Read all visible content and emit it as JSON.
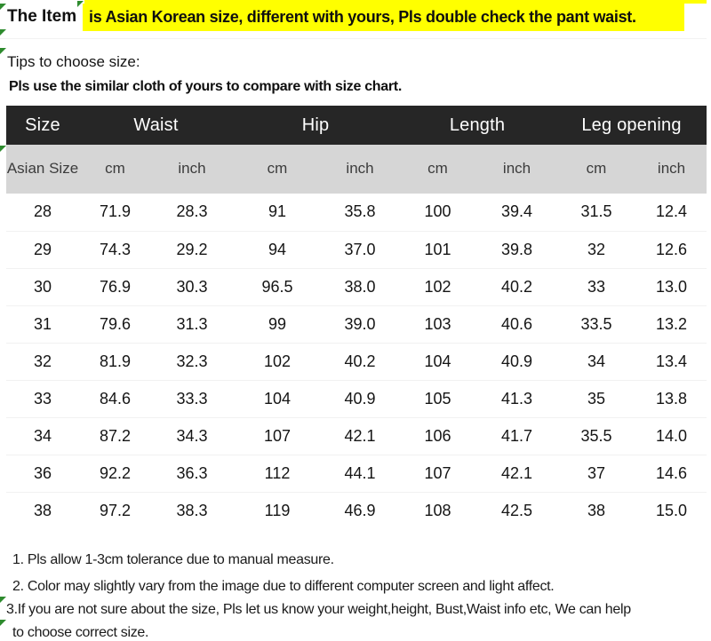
{
  "banner": {
    "prefix": "The Item",
    "highlight_text": "is Asian Korean size, different with yours, Pls double check the pant waist."
  },
  "intro": {
    "tips_line": "Tips to choose size:",
    "compare_line": "Pls use the similar cloth of yours to compare with size chart."
  },
  "size_chart": {
    "group_headers": [
      "Size",
      "Waist",
      "Hip",
      "Length",
      "Leg opening"
    ],
    "sub_headers": [
      "Asian Size",
      "cm",
      "inch",
      "cm",
      "inch",
      "cm",
      "inch",
      "cm",
      "inch"
    ],
    "rows": [
      [
        "28",
        "71.9",
        "28.3",
        "91",
        "35.8",
        "100",
        "39.4",
        "31.5",
        "12.4"
      ],
      [
        "29",
        "74.3",
        "29.2",
        "94",
        "37.0",
        "101",
        "39.8",
        "32",
        "12.6"
      ],
      [
        "30",
        "76.9",
        "30.3",
        "96.5",
        "38.0",
        "102",
        "40.2",
        "33",
        "13.0"
      ],
      [
        "31",
        "79.6",
        "31.3",
        "99",
        "39.0",
        "103",
        "40.6",
        "33.5",
        "13.2"
      ],
      [
        "32",
        "81.9",
        "32.3",
        "102",
        "40.2",
        "104",
        "40.9",
        "34",
        "13.4"
      ],
      [
        "33",
        "84.6",
        "33.3",
        "104",
        "40.9",
        "105",
        "41.3",
        "35",
        "13.8"
      ],
      [
        "34",
        "87.2",
        "34.3",
        "107",
        "42.1",
        "106",
        "41.7",
        "35.5",
        "14.0"
      ],
      [
        "36",
        "92.2",
        "36.3",
        "112",
        "44.1",
        "107",
        "42.1",
        "37",
        "14.6"
      ],
      [
        "38",
        "97.2",
        "38.3",
        "119",
        "46.9",
        "108",
        "42.5",
        "38",
        "15.0"
      ]
    ]
  },
  "notes": [
    "1. Pls allow 1-3cm tolerance due to manual measure.",
    "2. Color may slightly vary from the image due to different computer screen and light affect.",
    "3.If you are not sure about the size, Pls let us know your weight,height, Bust,Waist info etc, We can help",
    "to choose correct size."
  ],
  "colors": {
    "highlight_yellow": "#ffff00",
    "table_header_bg": "#262626",
    "table_subheader_bg": "#d6d6d6",
    "marker_green": "#2e8b2e"
  }
}
